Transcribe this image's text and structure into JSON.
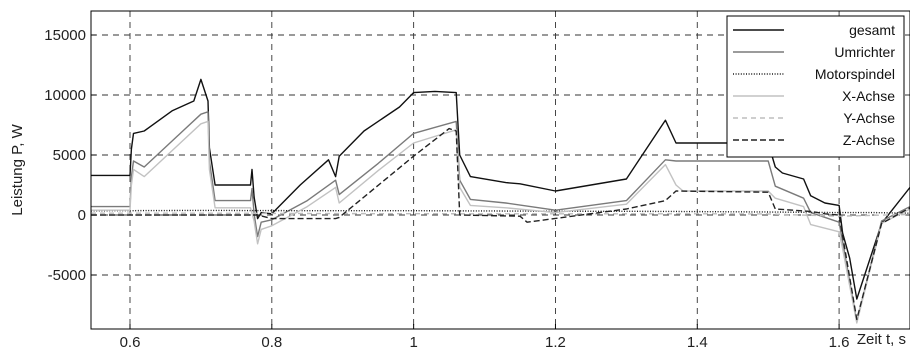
{
  "chart_data": {
    "type": "line",
    "title": "",
    "xlabel": "Zeit t, s",
    "ylabel": "Leistung P, W",
    "xlim": [
      0.545,
      1.7
    ],
    "ylim": [
      -9500,
      17000
    ],
    "x_ticks": [
      0.6,
      0.8,
      1.0,
      1.2,
      1.4,
      1.6
    ],
    "x_tick_labels": [
      "0.6",
      "0.8",
      "1",
      "1.2",
      "1.4",
      "1.6"
    ],
    "y_ticks": [
      -5000,
      0,
      5000,
      10000,
      15000
    ],
    "y_tick_labels": [
      "-5000",
      "0",
      "5000",
      "10000",
      "15000"
    ],
    "grid": true,
    "legend_position": "top-right",
    "series": [
      {
        "name": "gesamt",
        "color": "#111111",
        "dash": "solid",
        "x": [
          0.545,
          0.6,
          0.602,
          0.605,
          0.62,
          0.66,
          0.69,
          0.7,
          0.71,
          0.712,
          0.72,
          0.77,
          0.772,
          0.775,
          0.78,
          0.785,
          0.8,
          0.84,
          0.88,
          0.89,
          0.895,
          0.93,
          0.98,
          1.0,
          1.03,
          1.06,
          1.065,
          1.08,
          1.13,
          1.15,
          1.2,
          1.3,
          1.355,
          1.37,
          1.38,
          1.5,
          1.51,
          1.52,
          1.55,
          1.56,
          1.58,
          1.6,
          1.605,
          1.615,
          1.625,
          1.66,
          1.7
        ],
        "y": [
          3300,
          3300,
          5500,
          6800,
          7000,
          8700,
          9500,
          11300,
          9500,
          5600,
          2500,
          2500,
          3800,
          1500,
          -300,
          200,
          100,
          2500,
          4600,
          3200,
          4900,
          7000,
          9000,
          10200,
          10300,
          10200,
          5000,
          3200,
          2700,
          2600,
          2000,
          3000,
          7900,
          6000,
          6000,
          6000,
          4000,
          3500,
          3000,
          1600,
          1000,
          800,
          -1500,
          -3600,
          -7000,
          -700,
          2300
        ]
      },
      {
        "name": "Umrichter",
        "color": "#7a7a7a",
        "dash": "solid",
        "x": [
          0.545,
          0.6,
          0.602,
          0.605,
          0.62,
          0.66,
          0.7,
          0.71,
          0.712,
          0.72,
          0.77,
          0.772,
          0.775,
          0.78,
          0.785,
          0.8,
          0.85,
          0.89,
          0.895,
          0.95,
          1.0,
          1.06,
          1.065,
          1.08,
          1.13,
          1.2,
          1.3,
          1.355,
          1.37,
          1.38,
          1.5,
          1.51,
          1.55,
          1.56,
          1.6,
          1.605,
          1.625,
          1.66,
          1.7
        ],
        "y": [
          700,
          700,
          3200,
          4500,
          4000,
          6200,
          8400,
          8600,
          4500,
          1200,
          1200,
          2200,
          100,
          -1800,
          -600,
          -400,
          1200,
          2900,
          1700,
          4300,
          6800,
          7800,
          2900,
          1300,
          1000,
          400,
          1200,
          4600,
          4500,
          4500,
          4500,
          2400,
          1400,
          200,
          -600,
          -2200,
          -8900,
          -500,
          700
        ]
      },
      {
        "name": "Motorspindel",
        "color": "#1a1a1a",
        "dash": "1,1.6",
        "x": [
          0.545,
          0.7,
          0.85,
          1.0,
          1.2,
          1.35,
          1.5,
          1.6,
          1.65,
          1.7
        ],
        "y": [
          350,
          380,
          360,
          360,
          320,
          300,
          250,
          200,
          200,
          150
        ]
      },
      {
        "name": "X-Achse",
        "color": "#c2c2c2",
        "dash": "solid",
        "x": [
          0.545,
          0.6,
          0.602,
          0.605,
          0.62,
          0.66,
          0.7,
          0.71,
          0.712,
          0.72,
          0.77,
          0.775,
          0.78,
          0.785,
          0.8,
          0.85,
          0.89,
          0.895,
          0.95,
          1.0,
          1.06,
          1.065,
          1.08,
          1.13,
          1.2,
          1.3,
          1.355,
          1.37,
          1.38,
          1.5,
          1.51,
          1.55,
          1.56,
          1.6,
          1.605,
          1.625,
          1.66,
          1.7
        ],
        "y": [
          400,
          400,
          2500,
          3800,
          3200,
          5400,
          7600,
          7800,
          3800,
          600,
          600,
          -500,
          -2400,
          -1200,
          -900,
          700,
          2300,
          1000,
          3700,
          6000,
          7100,
          2300,
          800,
          600,
          200,
          900,
          4200,
          2500,
          2000,
          2000,
          1400,
          700,
          -800,
          -1400,
          -2800,
          -9000,
          -700,
          500
        ]
      },
      {
        "name": "Y-Achse",
        "color": "#bdbdbd",
        "dash": "5,4",
        "x": [
          0.545,
          0.7,
          0.9,
          1.1,
          1.3,
          1.4,
          1.5,
          1.6,
          1.7
        ],
        "y": [
          150,
          150,
          120,
          100,
          100,
          100,
          80,
          -100,
          50
        ]
      },
      {
        "name": "Z-Achse",
        "color": "#222222",
        "dash": "6,3",
        "x": [
          0.545,
          0.6,
          0.78,
          0.8,
          0.89,
          0.895,
          1.0,
          1.05,
          1.06,
          1.065,
          1.15,
          1.16,
          1.3,
          1.355,
          1.37,
          1.5,
          1.51,
          1.56,
          1.58,
          1.6,
          1.625,
          1.66,
          1.7
        ],
        "y": [
          0,
          0,
          0,
          -300,
          -300,
          -200,
          4900,
          7200,
          7000,
          0,
          -100,
          -600,
          500,
          1200,
          2000,
          1900,
          500,
          300,
          100,
          0,
          -8700,
          -700,
          600
        ]
      }
    ]
  }
}
